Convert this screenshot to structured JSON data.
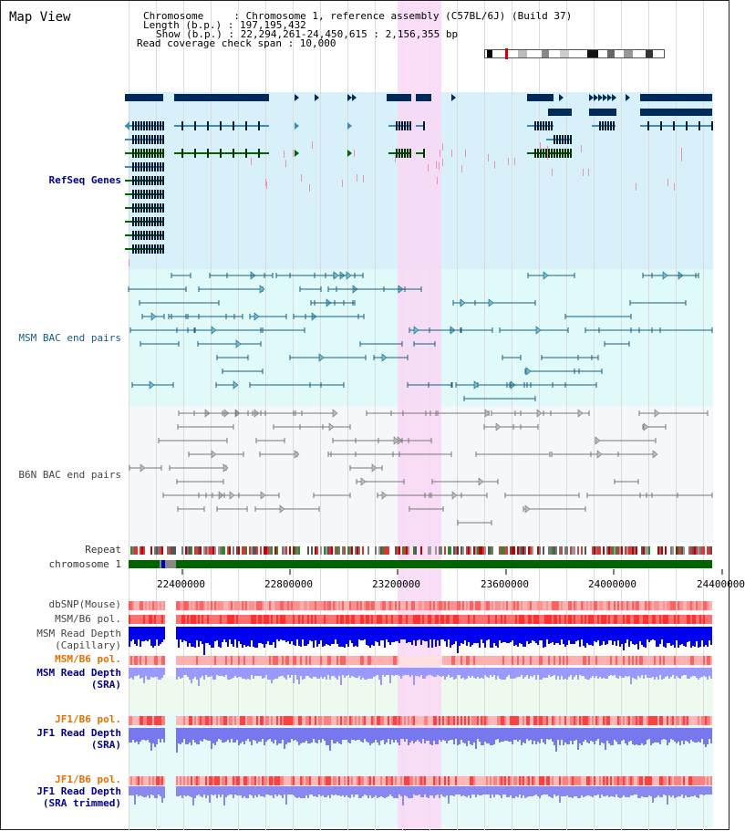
{
  "title": "Map View",
  "info": {
    "chromosome_line": "Chromosome     : Chromosome 1, reference assembly (C57BL/6J) (Build 37)",
    "length_line": "Length (b.p.) : 197,195,432",
    "show_line": "Show (b.p.) : 22,294,261-24,450,615 : 2,156,355 bp",
    "coverage_line": "Read coverage check span : 10,000"
  },
  "tracks": {
    "refseq": "RefSeq Genes",
    "msm_bac": "MSM BAC end pairs",
    "b6n_bac": "B6N BAC end pairs",
    "repeat": "Repeat",
    "chromosome": "chromosome 1",
    "dbsnp": "dbSNP(Mouse)",
    "msm_b6_pol": "MSM/B6 pol.",
    "msm_depth_cap": "MSM Read Depth",
    "msm_depth_cap_sub": "(Capillary)",
    "msm_b6_pol_sra": "MSM/B6 pol.",
    "msm_depth_sra": "MSM Read Depth",
    "msm_depth_sra_sub": "(SRA)",
    "jf1_b6_pol": "JF1/B6 pol.",
    "jf1_depth_sra": "JF1 Read Depth",
    "jf1_depth_sra_sub": "(SRA)",
    "jf1_b6_pol_trim": "JF1/B6 pol.",
    "jf1_depth_trim": "JF1 Read Depth",
    "jf1_depth_trim_sub": "(SRA trimmed)"
  },
  "axis": {
    "ticks": [
      "22400000",
      "22800000",
      "23200000",
      "23600000",
      "24000000",
      "24400000"
    ]
  },
  "colors": {
    "refseq_bg": "#d8f0fa",
    "msm_bg": "#e0fafa",
    "b6n_bg": "#f5f8fa",
    "highlight": "#f9d7f5",
    "gene_dark": "#002a5c",
    "gene_mid": "#3a8dbd",
    "gene_green": "#006400",
    "chromosome": "#006400"
  }
}
